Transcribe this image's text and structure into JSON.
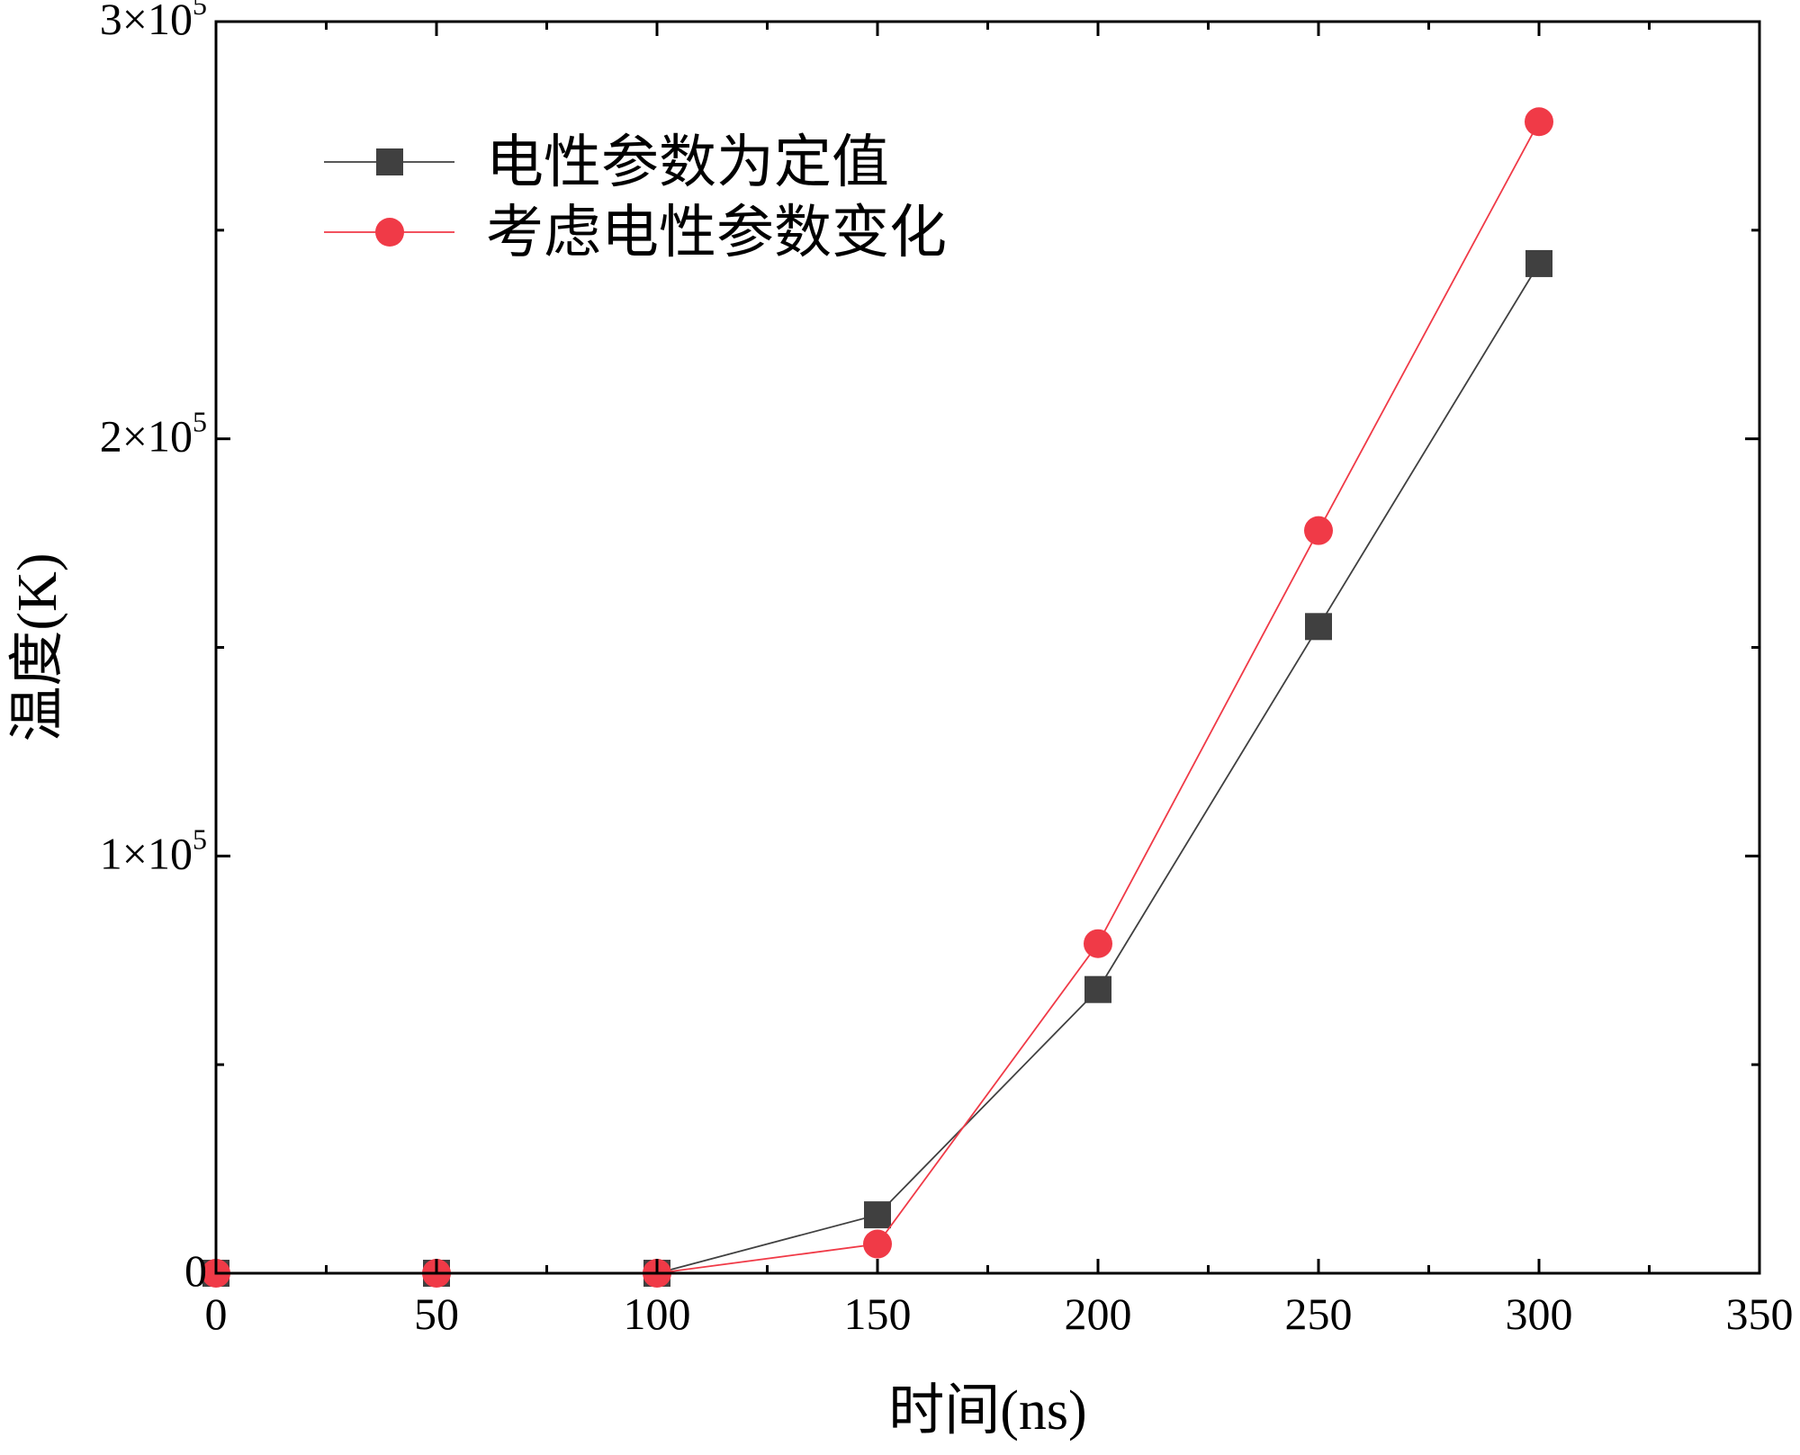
{
  "chart_data": {
    "type": "line",
    "title": "",
    "xlabel": "时间(ns)",
    "ylabel": "温度(K)",
    "xlim": [
      0,
      350
    ],
    "ylim": [
      0,
      300000
    ],
    "x_ticks": [
      0,
      50,
      100,
      150,
      200,
      250,
      300,
      350
    ],
    "x_tick_labels": [
      "0",
      "50",
      "100",
      "150",
      "200",
      "250",
      "300",
      "350"
    ],
    "y_ticks": [
      0,
      100000,
      200000,
      300000
    ],
    "y_tick_labels": [
      {
        "mantissa": "0",
        "times": "",
        "base": "",
        "exp": ""
      },
      {
        "mantissa": "1",
        "times": "×",
        "base": "10",
        "exp": "5"
      },
      {
        "mantissa": "2",
        "times": "×",
        "base": "10",
        "exp": "5"
      },
      {
        "mantissa": "3",
        "times": "×",
        "base": "10",
        "exp": "5"
      }
    ],
    "grid": false,
    "legend_position": "top-left",
    "x": [
      0,
      50,
      100,
      150,
      200,
      250,
      300
    ],
    "series": [
      {
        "name": "电性参数为定值",
        "marker": "square",
        "color": "#404040",
        "line_color": "#404040",
        "values": [
          0,
          0,
          0,
          14000,
          68000,
          155000,
          242000
        ]
      },
      {
        "name": "考虑电性参数变化",
        "marker": "circle",
        "color": "#f03a47",
        "line_color": "#f03a47",
        "values": [
          0,
          0,
          0,
          7000,
          79000,
          178000,
          276000
        ]
      }
    ]
  }
}
